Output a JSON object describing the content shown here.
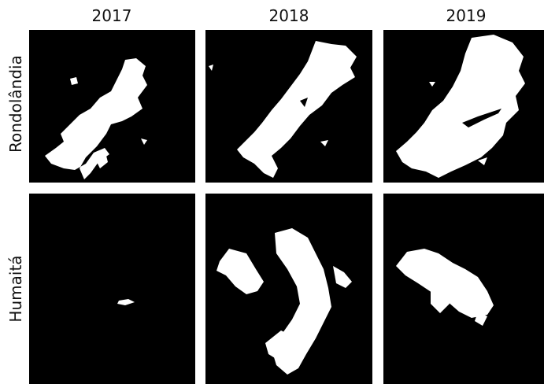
{
  "columns": [
    "2017",
    "2018",
    "2019"
  ],
  "rows": [
    {
      "label": "Rondolândia",
      "panels": [
        {
          "year": "2017",
          "description": "binary mask"
        },
        {
          "year": "2018",
          "description": "binary mask"
        },
        {
          "year": "2019",
          "description": "binary mask"
        }
      ]
    },
    {
      "label": "Humaitá",
      "panels": [
        {
          "year": "2017",
          "description": "binary mask"
        },
        {
          "year": "2018",
          "description": "binary mask"
        },
        {
          "year": "2019",
          "description": "binary mask"
        }
      ]
    }
  ],
  "colors": {
    "background": "#ffffff",
    "panel": "#000000",
    "mask": "#ffffff"
  }
}
